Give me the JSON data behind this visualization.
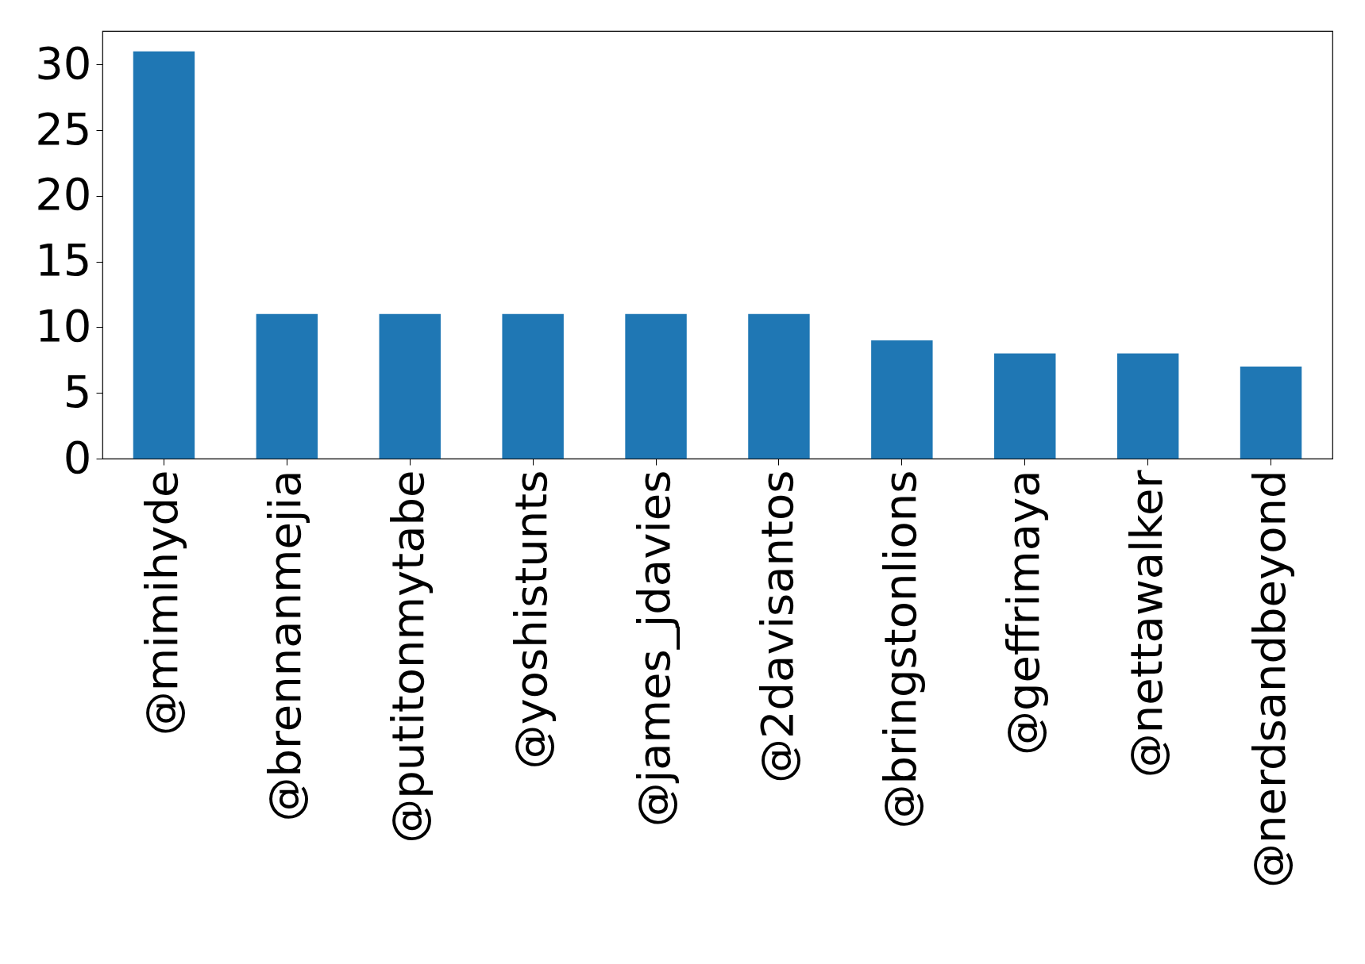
{
  "chart_data": {
    "type": "bar",
    "categories": [
      "@mimihyde",
      "@brennanmejia",
      "@putitonmytabe",
      "@yoshistunts",
      "@james_jdavies",
      "@2davisantos",
      "@bringstonlions",
      "@geffrimaya",
      "@nettawalker",
      "@nerdsandbeyond"
    ],
    "values": [
      31,
      11,
      11,
      11,
      11,
      11,
      9,
      8,
      8,
      7
    ],
    "color": "#1f77b4",
    "ylim": [
      0,
      32.55
    ],
    "yticks": [
      0,
      5,
      10,
      15,
      20,
      25,
      30
    ],
    "grid": false
  }
}
